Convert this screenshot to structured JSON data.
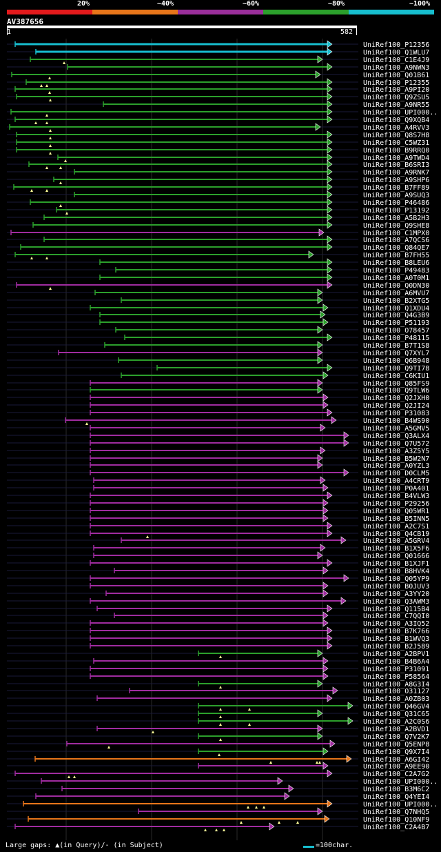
{
  "scale": {
    "colors": [
      "#e31a1c",
      "#e8761a",
      "#9a2f9a",
      "#2ca02c",
      "#17becf"
    ],
    "labels": [
      "20%",
      "~40%",
      "~60%",
      "~80%",
      "~100%"
    ]
  },
  "query": {
    "name": "AV387656",
    "start": "1",
    "end": "582"
  },
  "footer": {
    "gaps_text": "Large gaps: ▲(in Query)/- (in Subject)",
    "legend_text": "=100char."
  },
  "colors": {
    "green": "#2ca02c",
    "purple": "#a02ca0",
    "teal": "#17becf",
    "orange": "#e8761a"
  },
  "hits": [
    {
      "id": "UniRef100_P12356",
      "c": "teal",
      "s": 22,
      "e": 482,
      "m": []
    },
    {
      "id": "UniRef100_Q1WLU7",
      "c": "teal",
      "s": 52,
      "e": 482,
      "m": []
    },
    {
      "id": "UniRef100_C1E4J9",
      "c": "green",
      "s": 44,
      "e": 468,
      "m": [
        93
      ]
    },
    {
      "id": "UniRef100_A9NWN3",
      "c": "green",
      "s": 98,
      "e": 482,
      "m": []
    },
    {
      "id": "UniRef100_Q01B61",
      "c": "green",
      "s": 17,
      "e": 465,
      "m": [
        72
      ]
    },
    {
      "id": "UniRef100_P12355",
      "c": "green",
      "s": 38,
      "e": 482,
      "m": [
        60,
        68
      ]
    },
    {
      "id": "UniRef100_A9PI20",
      "c": "green",
      "s": 22,
      "e": 482,
      "m": [
        72
      ]
    },
    {
      "id": "UniRef100_Q9ZSU5",
      "c": "green",
      "s": 24,
      "e": 482,
      "m": [
        73
      ]
    },
    {
      "id": "UniRef100_A9NR55",
      "c": "green",
      "s": 150,
      "e": 482,
      "m": []
    },
    {
      "id": "UniRef100_UPI000..",
      "c": "green",
      "s": 16,
      "e": 482,
      "m": [
        68
      ]
    },
    {
      "id": "UniRef100_Q9XQB4",
      "c": "green",
      "s": 22,
      "e": 482,
      "m": [
        52,
        68
      ]
    },
    {
      "id": "UniRef100_A4RVV3",
      "c": "green",
      "s": 14,
      "e": 465,
      "m": [
        73
      ]
    },
    {
      "id": "UniRef100_Q8S7H8",
      "c": "green",
      "s": 24,
      "e": 482,
      "m": [
        73
      ]
    },
    {
      "id": "UniRef100_C5WZ31",
      "c": "green",
      "s": 24,
      "e": 482,
      "m": [
        73
      ]
    },
    {
      "id": "UniRef100_B9RRQ0",
      "c": "green",
      "s": 24,
      "e": 482,
      "m": [
        73
      ]
    },
    {
      "id": "UniRef100_A9TWD4",
      "c": "green",
      "s": 84,
      "e": 482,
      "m": [
        95
      ]
    },
    {
      "id": "UniRef100_B6SRI3",
      "c": "green",
      "s": 42,
      "e": 482,
      "m": [
        68,
        88
      ]
    },
    {
      "id": "UniRef100_A9RNK7",
      "c": "green",
      "s": 108,
      "e": 482,
      "m": []
    },
    {
      "id": "UniRef100_A9SHP6",
      "c": "green",
      "s": 78,
      "e": 482,
      "m": [
        88
      ]
    },
    {
      "id": "UniRef100_B7FF89",
      "c": "green",
      "s": 20,
      "e": 482,
      "m": [
        46,
        68
      ]
    },
    {
      "id": "UniRef100_A9SUQ3",
      "c": "green",
      "s": 108,
      "e": 482,
      "m": []
    },
    {
      "id": "UniRef100_P46486",
      "c": "green",
      "s": 44,
      "e": 482,
      "m": [
        88
      ]
    },
    {
      "id": "UniRef100_P13192",
      "c": "green",
      "s": 82,
      "e": 482,
      "m": [
        97
      ]
    },
    {
      "id": "UniRef100_A5B2H3",
      "c": "green",
      "s": 64,
      "e": 482,
      "m": []
    },
    {
      "id": "UniRef100_Q9SHE8",
      "c": "green",
      "s": 48,
      "e": 482,
      "m": []
    },
    {
      "id": "UniRef100_C1MPX0",
      "c": "purple",
      "s": 16,
      "e": 470,
      "m": []
    },
    {
      "id": "UniRef100_A7QCS6",
      "c": "green",
      "s": 64,
      "e": 482,
      "m": []
    },
    {
      "id": "UniRef100_Q84QE7",
      "c": "green",
      "s": 30,
      "e": 482,
      "m": []
    },
    {
      "id": "UniRef100_B7FH55",
      "c": "green",
      "s": 22,
      "e": 455,
      "m": [
        46,
        68
      ]
    },
    {
      "id": "UniRef100_B8LEU6",
      "c": "green",
      "s": 145,
      "e": 482,
      "m": []
    },
    {
      "id": "UniRef100_P49483",
      "c": "green",
      "s": 168,
      "e": 482,
      "m": []
    },
    {
      "id": "UniRef100_A0T0M1",
      "c": "green",
      "s": 145,
      "e": 482,
      "m": []
    },
    {
      "id": "UniRef100_Q0DN30",
      "c": "purple",
      "s": 24,
      "e": 482,
      "m": [
        73
      ]
    },
    {
      "id": "UniRef100_A6MVU7",
      "c": "green",
      "s": 138,
      "e": 468,
      "m": []
    },
    {
      "id": "UniRef100_B2XTG5",
      "c": "green",
      "s": 176,
      "e": 468,
      "m": []
    },
    {
      "id": "UniRef100_Q1XDU4",
      "c": "green",
      "s": 131,
      "e": 476,
      "m": []
    },
    {
      "id": "UniRef100_Q4G3B9",
      "c": "green",
      "s": 145,
      "e": 472,
      "m": []
    },
    {
      "id": "UniRef100_P51193",
      "c": "green",
      "s": 145,
      "e": 476,
      "m": []
    },
    {
      "id": "UniRef100_O78457",
      "c": "green",
      "s": 168,
      "e": 468,
      "m": []
    },
    {
      "id": "UniRef100_P48115",
      "c": "green",
      "s": 181,
      "e": 482,
      "m": []
    },
    {
      "id": "UniRef100_B7T1S8",
      "c": "green",
      "s": 152,
      "e": 468,
      "m": []
    },
    {
      "id": "UniRef100_Q7XYL7",
      "c": "purple",
      "s": 85,
      "e": 468,
      "m": []
    },
    {
      "id": "UniRef100_Q6B948",
      "c": "green",
      "s": 172,
      "e": 468,
      "m": []
    },
    {
      "id": "UniRef100_Q9TI78",
      "c": "green",
      "s": 228,
      "e": 482,
      "m": []
    },
    {
      "id": "UniRef100_C6KIU1",
      "c": "green",
      "s": 176,
      "e": 476,
      "m": []
    },
    {
      "id": "UniRef100_Q85FS9",
      "c": "purple",
      "s": 131,
      "e": 468,
      "m": []
    },
    {
      "id": "UniRef100_Q9TLW6",
      "c": "green",
      "s": 131,
      "e": 468,
      "m": []
    },
    {
      "id": "UniRef100_Q2JXH0",
      "c": "purple",
      "s": 131,
      "e": 476,
      "m": []
    },
    {
      "id": "UniRef100_Q2JI24",
      "c": "purple",
      "s": 131,
      "e": 476,
      "m": []
    },
    {
      "id": "UniRef100_P31083",
      "c": "purple",
      "s": 131,
      "e": 482,
      "m": []
    },
    {
      "id": "UniRef100_B4WS90",
      "c": "purple",
      "s": 95,
      "e": 488,
      "m": [
        126
      ]
    },
    {
      "id": "UniRef100_A5GMV5",
      "c": "purple",
      "s": 131,
      "e": 472,
      "m": []
    },
    {
      "id": "UniRef100_Q3ALX4",
      "c": "purple",
      "s": 131,
      "e": 506,
      "m": []
    },
    {
      "id": "UniRef100_Q7U572",
      "c": "purple",
      "s": 131,
      "e": 506,
      "m": []
    },
    {
      "id": "UniRef100_A3Z5Y5",
      "c": "purple",
      "s": 131,
      "e": 472,
      "m": []
    },
    {
      "id": "UniRef100_B5W2N7",
      "c": "purple",
      "s": 131,
      "e": 468,
      "m": []
    },
    {
      "id": "UniRef100_A0YZL3",
      "c": "purple",
      "s": 131,
      "e": 468,
      "m": []
    },
    {
      "id": "UniRef100_D0CLM5",
      "c": "purple",
      "s": 131,
      "e": 506,
      "m": []
    },
    {
      "id": "UniRef100_A4CRT9",
      "c": "purple",
      "s": 136,
      "e": 472,
      "m": []
    },
    {
      "id": "UniRef100_P0A401",
      "c": "purple",
      "s": 136,
      "e": 476,
      "m": []
    },
    {
      "id": "UniRef100_B4VLW3",
      "c": "purple",
      "s": 131,
      "e": 482,
      "m": []
    },
    {
      "id": "UniRef100_P29256",
      "c": "purple",
      "s": 131,
      "e": 476,
      "m": []
    },
    {
      "id": "UniRef100_Q05WR1",
      "c": "purple",
      "s": 131,
      "e": 476,
      "m": []
    },
    {
      "id": "UniRef100_B5INN5",
      "c": "purple",
      "s": 131,
      "e": 476,
      "m": []
    },
    {
      "id": "UniRef100_A2C7S1",
      "c": "purple",
      "s": 131,
      "e": 482,
      "m": []
    },
    {
      "id": "UniRef100_Q4CB19",
      "c": "purple",
      "s": 131,
      "e": 482,
      "m": [
        214
      ]
    },
    {
      "id": "UniRef100_A5GRV4",
      "c": "purple",
      "s": 176,
      "e": 502,
      "m": []
    },
    {
      "id": "UniRef100_B1X5F6",
      "c": "purple",
      "s": 136,
      "e": 472,
      "m": []
    },
    {
      "id": "UniRef100_Q01666",
      "c": "purple",
      "s": 136,
      "e": 468,
      "m": []
    },
    {
      "id": "UniRef100_B1XJF1",
      "c": "purple",
      "s": 131,
      "e": 482,
      "m": []
    },
    {
      "id": "UniRef100_B8HVK4",
      "c": "purple",
      "s": 166,
      "e": 476,
      "m": []
    },
    {
      "id": "UniRef100_Q05YP9",
      "c": "purple",
      "s": 131,
      "e": 506,
      "m": []
    },
    {
      "id": "UniRef100_B0JUV3",
      "c": "purple",
      "s": 131,
      "e": 476,
      "m": []
    },
    {
      "id": "UniRef100_A3YY20",
      "c": "purple",
      "s": 154,
      "e": 476,
      "m": []
    },
    {
      "id": "UniRef100_Q3AWM3",
      "c": "purple",
      "s": 131,
      "e": 502,
      "m": []
    },
    {
      "id": "UniRef100_Q115B4",
      "c": "purple",
      "s": 141,
      "e": 482,
      "m": []
    },
    {
      "id": "UniRef100_C7QQI0",
      "c": "purple",
      "s": 166,
      "e": 476,
      "m": []
    },
    {
      "id": "UniRef100_A3IQ52",
      "c": "purple",
      "s": 131,
      "e": 476,
      "m": []
    },
    {
      "id": "UniRef100_B7K766",
      "c": "purple",
      "s": 131,
      "e": 482,
      "m": []
    },
    {
      "id": "UniRef100_B1WVQ3",
      "c": "purple",
      "s": 131,
      "e": 482,
      "m": []
    },
    {
      "id": "UniRef100_B2J589",
      "c": "purple",
      "s": 131,
      "e": 482,
      "m": []
    },
    {
      "id": "UniRef100_A2BPV1",
      "c": "green",
      "s": 288,
      "e": 468,
      "m": [
        320
      ]
    },
    {
      "id": "UniRef100_B4B6A4",
      "c": "purple",
      "s": 136,
      "e": 476,
      "m": []
    },
    {
      "id": "UniRef100_P31091",
      "c": "purple",
      "s": 131,
      "e": 476,
      "m": []
    },
    {
      "id": "UniRef100_P58564",
      "c": "purple",
      "s": 131,
      "e": 476,
      "m": []
    },
    {
      "id": "UniRef100_A8G3I4",
      "c": "green",
      "s": 288,
      "e": 468,
      "m": [
        320
      ]
    },
    {
      "id": "UniRef100_O31127",
      "c": "purple",
      "s": 188,
      "e": 490,
      "m": []
    },
    {
      "id": "UniRef100_A0ZB03",
      "c": "purple",
      "s": 141,
      "e": 482,
      "m": []
    },
    {
      "id": "UniRef100_Q46GV4",
      "c": "green",
      "s": 288,
      "e": 512,
      "m": [
        320,
        362
      ]
    },
    {
      "id": "UniRef100_Q31C65",
      "c": "green",
      "s": 288,
      "e": 468,
      "m": [
        320
      ]
    },
    {
      "id": "UniRef100_A2C0S6",
      "c": "green",
      "s": 288,
      "e": 512,
      "m": [
        320,
        362
      ]
    },
    {
      "id": "UniRef100_A2BVD1",
      "c": "purple",
      "s": 141,
      "e": 468,
      "m": [
        222
      ]
    },
    {
      "id": "UniRef100_Q7V2K7",
      "c": "green",
      "s": 288,
      "e": 468,
      "m": [
        320
      ]
    },
    {
      "id": "UniRef100_Q5ENP8",
      "c": "purple",
      "s": 97,
      "e": 486,
      "m": [
        158
      ]
    },
    {
      "id": "UniRef100_Q9X7I4",
      "c": "green",
      "s": 288,
      "e": 476,
      "m": [
        318
      ]
    },
    {
      "id": "UniRef100_A6GI42",
      "c": "orange",
      "s": 51,
      "e": 510,
      "m": [
        393,
        460,
        464
      ]
    },
    {
      "id": "UniRef100_A9EE90",
      "c": "purple",
      "s": 288,
      "e": 476,
      "m": []
    },
    {
      "id": "UniRef100_C2A7G2",
      "c": "purple",
      "s": 22,
      "e": 482,
      "m": [
        100,
        108
      ]
    },
    {
      "id": "UniRef100_UPI000..",
      "c": "purple",
      "s": 60,
      "e": 410,
      "m": []
    },
    {
      "id": "UniRef100_B3M6C2",
      "c": "purple",
      "s": 90,
      "e": 426,
      "m": []
    },
    {
      "id": "UniRef100_Q4YEI4",
      "c": "purple",
      "s": 52,
      "e": 420,
      "m": []
    },
    {
      "id": "UniRef100_UPI000..",
      "c": "orange",
      "s": 34,
      "e": 482,
      "m": [
        360,
        372,
        383
      ]
    },
    {
      "id": "UniRef100_Q7NHQ5",
      "c": "purple",
      "s": 201,
      "e": 468,
      "m": []
    },
    {
      "id": "UniRef100_Q10NF9",
      "c": "orange",
      "s": 41,
      "e": 478,
      "m": [
        350,
        405,
        432
      ]
    },
    {
      "id": "UniRef100_C2A4B7",
      "c": "purple",
      "s": 22,
      "e": 398,
      "m": [
        298,
        314,
        325
      ]
    }
  ]
}
